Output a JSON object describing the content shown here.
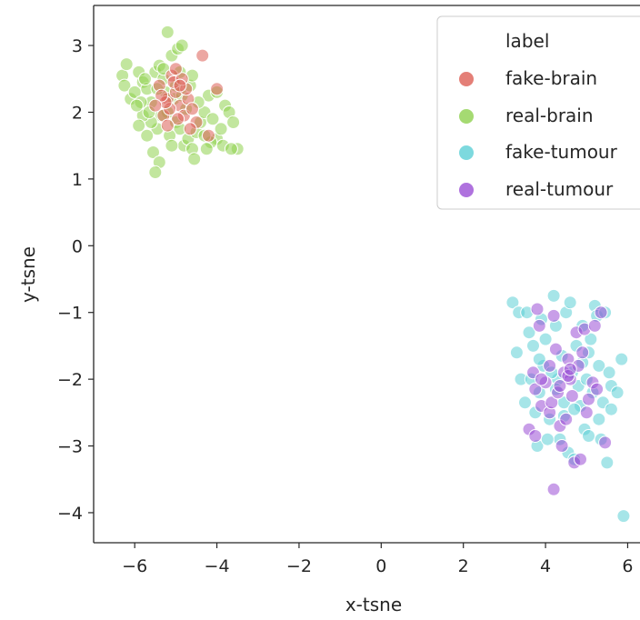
{
  "chart_data": {
    "type": "scatter",
    "xlabel": "x-tsne",
    "ylabel": "y-tsne",
    "xlim": [
      -7,
      6.3
    ],
    "ylim": [
      -4.45,
      3.6
    ],
    "xticks": [
      -6,
      -4,
      -2,
      0,
      2,
      4,
      6
    ],
    "yticks": [
      3,
      2,
      1,
      0,
      -1,
      -2,
      -3,
      -4
    ],
    "grid": false,
    "legend": {
      "title": "label",
      "placement": "top-right",
      "entries": [
        "fake-brain",
        "real-brain",
        "fake-tumour",
        "real-tumour"
      ]
    },
    "series": [
      {
        "name": "real-brain",
        "color": "#8fd14f",
        "points": [
          [
            -6.3,
            2.55
          ],
          [
            -6.2,
            2.72
          ],
          [
            -6.25,
            2.4
          ],
          [
            -6.1,
            2.2
          ],
          [
            -6.0,
            2.3
          ],
          [
            -5.9,
            2.6
          ],
          [
            -5.8,
            2.45
          ],
          [
            -5.7,
            2.35
          ],
          [
            -5.6,
            2.15
          ],
          [
            -5.5,
            2.6
          ],
          [
            -5.4,
            2.7
          ],
          [
            -5.3,
            2.5
          ],
          [
            -5.2,
            3.2
          ],
          [
            -5.1,
            2.85
          ],
          [
            -4.95,
            2.95
          ],
          [
            -4.85,
            3.0
          ],
          [
            -5.05,
            2.2
          ],
          [
            -5.2,
            2.0
          ],
          [
            -5.0,
            1.85
          ],
          [
            -4.9,
            1.75
          ],
          [
            -5.15,
            1.65
          ],
          [
            -5.35,
            1.95
          ],
          [
            -5.45,
            1.75
          ],
          [
            -5.6,
            1.85
          ],
          [
            -5.7,
            1.65
          ],
          [
            -5.8,
            1.95
          ],
          [
            -5.85,
            2.15
          ],
          [
            -5.55,
            1.4
          ],
          [
            -5.4,
            1.25
          ],
          [
            -5.5,
            1.1
          ],
          [
            -4.8,
            1.5
          ],
          [
            -4.7,
            1.6
          ],
          [
            -4.6,
            1.45
          ],
          [
            -4.5,
            1.7
          ],
          [
            -4.4,
            1.85
          ],
          [
            -4.3,
            2.0
          ],
          [
            -4.2,
            2.25
          ],
          [
            -4.1,
            1.9
          ],
          [
            -4.0,
            1.6
          ],
          [
            -3.9,
            1.75
          ],
          [
            -3.8,
            2.1
          ],
          [
            -3.7,
            2.0
          ],
          [
            -3.6,
            1.85
          ],
          [
            -3.5,
            1.45
          ],
          [
            -4.15,
            1.55
          ],
          [
            -4.65,
            2.4
          ],
          [
            -4.85,
            2.25
          ],
          [
            -4.75,
            2.05
          ],
          [
            -5.25,
            2.3
          ],
          [
            -5.65,
            2.0
          ],
          [
            -5.95,
            2.1
          ],
          [
            -4.9,
            2.6
          ],
          [
            -4.45,
            2.15
          ],
          [
            -4.3,
            1.65
          ],
          [
            -5.1,
            1.5
          ],
          [
            -4.55,
            1.3
          ],
          [
            -4.0,
            2.3
          ],
          [
            -3.85,
            1.5
          ],
          [
            -5.75,
            2.5
          ],
          [
            -5.3,
            2.65
          ],
          [
            -4.6,
            2.55
          ],
          [
            -5.45,
            2.35
          ],
          [
            -4.25,
            1.45
          ],
          [
            -3.65,
            1.45
          ],
          [
            -5.9,
            1.8
          ],
          [
            -5.0,
            2.4
          ]
        ]
      },
      {
        "name": "fake-brain",
        "color": "#dd5f55",
        "points": [
          [
            -4.35,
            2.85
          ],
          [
            -4.0,
            2.35
          ],
          [
            -5.4,
            2.4
          ],
          [
            -5.2,
            2.2
          ],
          [
            -5.1,
            2.55
          ],
          [
            -5.0,
            2.3
          ],
          [
            -4.9,
            2.1
          ],
          [
            -5.3,
            1.95
          ],
          [
            -5.15,
            2.05
          ],
          [
            -4.8,
            1.95
          ],
          [
            -4.7,
            2.2
          ],
          [
            -5.25,
            2.15
          ],
          [
            -4.95,
            1.9
          ],
          [
            -5.05,
            2.45
          ],
          [
            -4.75,
            2.35
          ],
          [
            -5.35,
            2.25
          ],
          [
            -4.85,
            2.5
          ],
          [
            -4.6,
            2.05
          ],
          [
            -5.5,
            2.1
          ],
          [
            -4.5,
            1.85
          ],
          [
            -4.2,
            1.65
          ],
          [
            -5.0,
            2.65
          ],
          [
            -5.2,
            1.8
          ],
          [
            -4.9,
            2.4
          ],
          [
            -4.65,
            1.75
          ]
        ]
      },
      {
        "name": "fake-tumour",
        "color": "#5ccfd6",
        "points": [
          [
            3.2,
            -0.85
          ],
          [
            3.35,
            -1.0
          ],
          [
            3.3,
            -1.6
          ],
          [
            3.4,
            -2.0
          ],
          [
            3.5,
            -2.35
          ],
          [
            3.6,
            -1.3
          ],
          [
            3.7,
            -1.5
          ],
          [
            3.75,
            -2.5
          ],
          [
            3.8,
            -3.0
          ],
          [
            3.85,
            -2.2
          ],
          [
            3.9,
            -1.1
          ],
          [
            3.95,
            -1.8
          ],
          [
            4.0,
            -1.4
          ],
          [
            4.1,
            -2.6
          ],
          [
            4.2,
            -0.75
          ],
          [
            4.25,
            -1.2
          ],
          [
            4.3,
            -2.0
          ],
          [
            4.35,
            -2.9
          ],
          [
            4.4,
            -1.65
          ],
          [
            4.45,
            -2.35
          ],
          [
            4.5,
            -1.0
          ],
          [
            4.55,
            -3.1
          ],
          [
            4.6,
            -0.85
          ],
          [
            4.65,
            -1.9
          ],
          [
            4.7,
            -3.2
          ],
          [
            4.75,
            -1.5
          ],
          [
            4.8,
            -2.1
          ],
          [
            4.85,
            -2.4
          ],
          [
            4.9,
            -1.2
          ],
          [
            4.95,
            -2.75
          ],
          [
            5.0,
            -2.0
          ],
          [
            5.05,
            -1.6
          ],
          [
            5.1,
            -1.4
          ],
          [
            5.15,
            -2.2
          ],
          [
            5.2,
            -0.9
          ],
          [
            5.25,
            -1.05
          ],
          [
            5.3,
            -1.8
          ],
          [
            5.35,
            -2.9
          ],
          [
            5.4,
            -2.35
          ],
          [
            5.45,
            -1.0
          ],
          [
            5.5,
            -3.25
          ],
          [
            5.55,
            -1.9
          ],
          [
            5.6,
            -2.1
          ],
          [
            5.75,
            -2.2
          ],
          [
            5.85,
            -1.7
          ],
          [
            5.9,
            -4.05
          ],
          [
            4.15,
            -1.9
          ],
          [
            3.65,
            -2.0
          ],
          [
            4.05,
            -2.9
          ],
          [
            4.45,
            -2.55
          ],
          [
            4.9,
            -1.75
          ],
          [
            5.3,
            -2.6
          ],
          [
            3.55,
            -1.0
          ],
          [
            4.7,
            -2.45
          ],
          [
            5.05,
            -2.85
          ],
          [
            4.25,
            -2.15
          ],
          [
            3.85,
            -1.7
          ],
          [
            5.6,
            -2.45
          ]
        ]
      },
      {
        "name": "real-tumour",
        "color": "#9b4fd6",
        "points": [
          [
            3.8,
            -0.95
          ],
          [
            3.85,
            -1.2
          ],
          [
            3.7,
            -1.9
          ],
          [
            3.75,
            -2.15
          ],
          [
            3.6,
            -2.75
          ],
          [
            3.75,
            -2.85
          ],
          [
            3.9,
            -2.4
          ],
          [
            4.0,
            -2.05
          ],
          [
            4.1,
            -2.5
          ],
          [
            4.15,
            -2.35
          ],
          [
            4.2,
            -1.05
          ],
          [
            4.25,
            -1.55
          ],
          [
            4.3,
            -2.2
          ],
          [
            4.35,
            -2.7
          ],
          [
            4.4,
            -3.0
          ],
          [
            4.45,
            -1.9
          ],
          [
            4.5,
            -2.6
          ],
          [
            4.55,
            -1.7
          ],
          [
            4.6,
            -2.0
          ],
          [
            4.65,
            -2.25
          ],
          [
            4.7,
            -3.25
          ],
          [
            4.75,
            -1.3
          ],
          [
            4.8,
            -1.8
          ],
          [
            4.85,
            -3.2
          ],
          [
            4.9,
            -1.6
          ],
          [
            4.95,
            -1.25
          ],
          [
            5.0,
            -2.5
          ],
          [
            5.05,
            -2.3
          ],
          [
            5.15,
            -2.05
          ],
          [
            5.2,
            -1.2
          ],
          [
            5.25,
            -2.15
          ],
          [
            5.35,
            -1.0
          ],
          [
            5.45,
            -2.95
          ],
          [
            4.55,
            -1.95
          ],
          [
            4.35,
            -2.1
          ],
          [
            4.6,
            -1.85
          ],
          [
            4.2,
            -3.65
          ],
          [
            3.9,
            -2.0
          ],
          [
            4.1,
            -1.8
          ]
        ]
      }
    ]
  }
}
